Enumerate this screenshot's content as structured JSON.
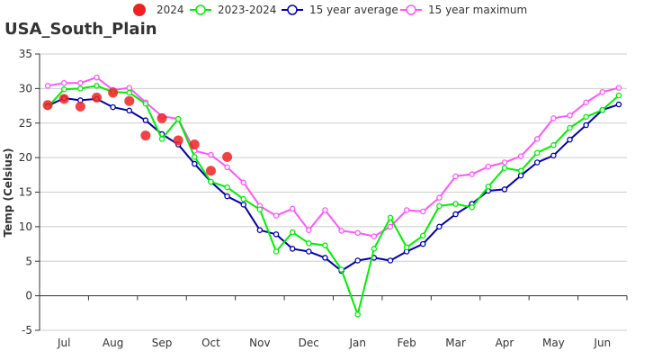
{
  "chart_data": {
    "type": "line",
    "title": "USA_South_Plain",
    "xlabel": "",
    "ylabel": "Temp (Celsius)",
    "ylim": [
      -5,
      35
    ],
    "yticks": [
      -5,
      0,
      5,
      10,
      15,
      20,
      25,
      30,
      35
    ],
    "grid": true,
    "legend_position": "top",
    "month_labels": [
      "Jul",
      "Aug",
      "Sep",
      "Oct",
      "Nov",
      "Dec",
      "Jan",
      "Feb",
      "Mar",
      "Apr",
      "May",
      "Jun"
    ],
    "points_per_month": 3,
    "series": [
      {
        "name": "2024",
        "style": "dots",
        "color": "#ee2222",
        "values": [
          27.6,
          28.5,
          27.4,
          28.7,
          29.4,
          28.2,
          23.2,
          25.7,
          22.5,
          21.9,
          18.1,
          20.1
        ]
      },
      {
        "name": "2023-2024",
        "style": "line",
        "color": "#00ee00",
        "values": [
          27.3,
          29.9,
          30.0,
          30.4,
          29.5,
          29.4,
          27.8,
          22.7,
          25.6,
          20.1,
          16.5,
          15.7,
          14.0,
          12.5,
          6.4,
          9.2,
          7.6,
          7.3,
          3.8,
          -2.7,
          6.8,
          11.3,
          7.0,
          8.7,
          13.0,
          13.3,
          12.8,
          15.8,
          18.5,
          18.1,
          20.7,
          21.8,
          24.3,
          25.9,
          26.9,
          29.0
        ]
      },
      {
        "name": "15 year average",
        "style": "line",
        "color": "#0000aa",
        "values": [
          27.5,
          28.6,
          28.3,
          28.5,
          27.3,
          26.8,
          25.4,
          23.4,
          21.9,
          19.1,
          16.5,
          14.4,
          13.2,
          9.5,
          8.9,
          6.8,
          6.4,
          5.5,
          3.6,
          5.1,
          5.5,
          5.1,
          6.4,
          7.5,
          10.0,
          11.8,
          13.3,
          15.2,
          15.4,
          17.4,
          19.3,
          20.3,
          22.6,
          24.7,
          26.9,
          27.7
        ]
      },
      {
        "name": "15 year maximum",
        "style": "line",
        "color": "#ff55ff",
        "values": [
          30.4,
          30.8,
          30.8,
          31.6,
          29.8,
          30.1,
          28.0,
          26.0,
          25.6,
          21.0,
          20.4,
          18.6,
          16.4,
          13.0,
          11.6,
          12.6,
          9.5,
          12.4,
          9.4,
          9.1,
          8.6,
          10.0,
          12.4,
          12.2,
          14.2,
          17.3,
          17.6,
          18.7,
          19.3,
          20.2,
          22.7,
          25.7,
          26.1,
          28.0,
          29.5,
          30.1
        ]
      }
    ]
  }
}
